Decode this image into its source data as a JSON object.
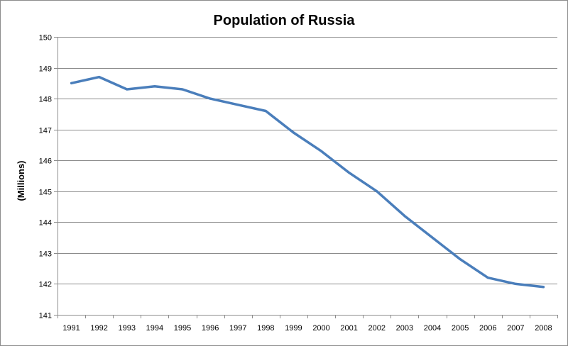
{
  "chart_data": {
    "type": "line",
    "title": "Population of Russia",
    "xlabel": "",
    "ylabel": "(Millions)",
    "ylim": [
      141,
      150
    ],
    "yticks": [
      141,
      142,
      143,
      144,
      145,
      146,
      147,
      148,
      149,
      150
    ],
    "grid": true,
    "legend": "none",
    "categories": [
      "1991",
      "1992",
      "1993",
      "1994",
      "1995",
      "1996",
      "1997",
      "1998",
      "1999",
      "2000",
      "2001",
      "2002",
      "2003",
      "2004",
      "2005",
      "2006",
      "2007",
      "2008"
    ],
    "series": [
      {
        "color": "#4a7ebb",
        "values": [
          148.5,
          148.7,
          148.3,
          148.4,
          148.3,
          148.0,
          147.8,
          147.6,
          146.9,
          146.3,
          145.6,
          145.0,
          144.2,
          143.5,
          142.8,
          142.2,
          142.0,
          141.9
        ]
      }
    ],
    "colors": {
      "gridline": "#8c8c8c",
      "axis": "#8c8c8c"
    }
  }
}
